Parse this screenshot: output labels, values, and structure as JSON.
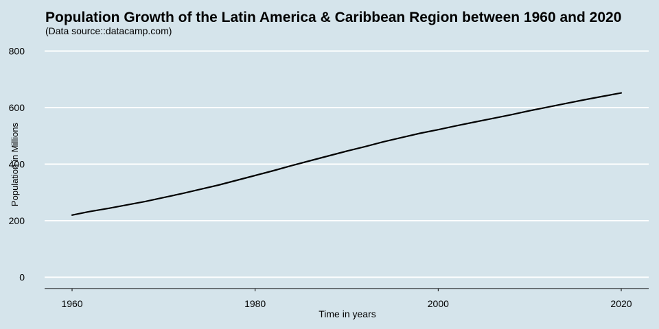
{
  "chart_data": {
    "type": "line",
    "title": "Population Growth of the Latin America & Caribbean Region between 1960 and 2020",
    "subtitle": "(Data source::datacamp.com)",
    "xlabel": "Time in years",
    "ylabel": "Population in Millions",
    "xlim": [
      1957,
      2023
    ],
    "ylim": [
      -40,
      840
    ],
    "xticks": [
      1960,
      1980,
      2000,
      2020
    ],
    "yticks": [
      0,
      200,
      400,
      600,
      800
    ],
    "grid": "horizontal",
    "legend": "none",
    "colors": {
      "background": "#d5e4eb",
      "grid": "#ffffff",
      "line": "#000000",
      "axis": "#000000"
    },
    "x": [
      1960,
      1962,
      1964,
      1966,
      1968,
      1970,
      1972,
      1974,
      1976,
      1978,
      1980,
      1982,
      1984,
      1986,
      1988,
      1990,
      1992,
      1994,
      1996,
      1998,
      2000,
      2002,
      2004,
      2006,
      2008,
      2010,
      2012,
      2014,
      2016,
      2018,
      2020
    ],
    "series": [
      {
        "values": [
          220,
          233,
          244,
          256,
          268,
          282,
          296,
          311,
          326,
          343,
          360,
          377,
          395,
          412,
          429,
          446,
          462,
          479,
          494,
          509,
          522,
          536,
          549,
          562,
          575,
          589,
          602,
          615,
          628,
          640,
          652
        ]
      }
    ]
  }
}
